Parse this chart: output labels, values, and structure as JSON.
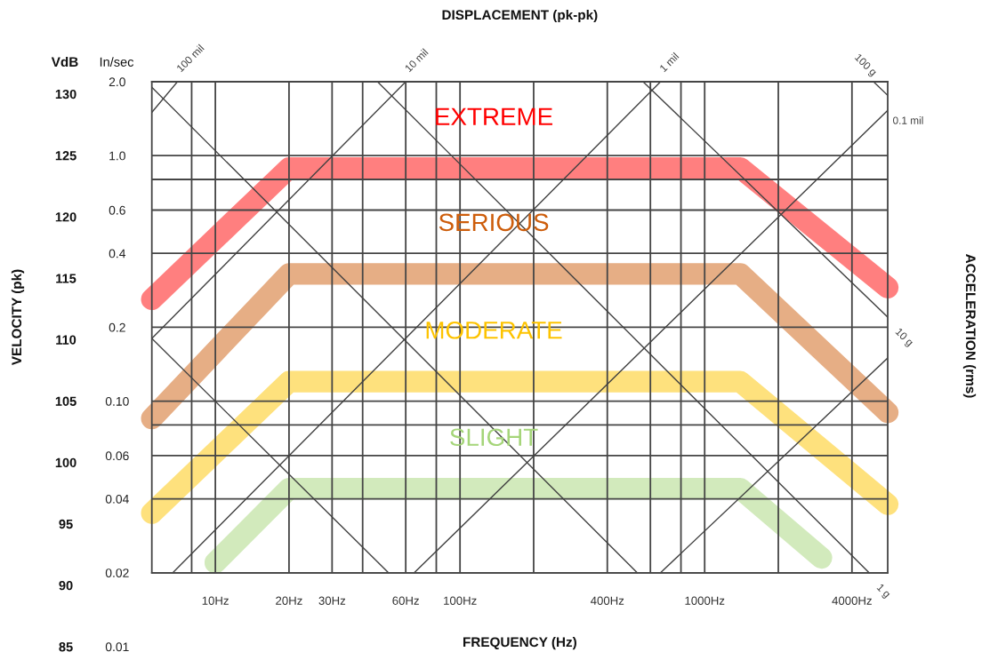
{
  "chart_data": {
    "type": "line",
    "title": "DISPLACEMENT (pk-pk)",
    "xlabel": "FREQUENCY (Hz)",
    "ylabel": "In/sec",
    "y2label": "VdB",
    "annotations": [
      "VELOCITY (pk)",
      "ACCELERATION (rms)",
      "EXTREME",
      "SERIOUS",
      "MODERATE",
      "SLIGHT"
    ],
    "log": "xy",
    "grid": true,
    "xlim": [
      5.5,
      5600
    ],
    "xticks": [
      {
        "value": 8,
        "label": null
      },
      {
        "value": 10,
        "label": "10Hz"
      },
      {
        "value": 20,
        "label": "20Hz"
      },
      {
        "value": 30,
        "label": "30Hz"
      },
      {
        "value": 40,
        "label": null
      },
      {
        "value": 60,
        "label": "60Hz"
      },
      {
        "value": 80,
        "label": null
      },
      {
        "value": 100,
        "label": "100Hz"
      },
      {
        "value": 200,
        "label": null
      },
      {
        "value": 400,
        "label": "400Hz"
      },
      {
        "value": 600,
        "label": null
      },
      {
        "value": 800,
        "label": null
      },
      {
        "value": 1000,
        "label": "1000Hz"
      },
      {
        "value": 2000,
        "label": null
      },
      {
        "value": 4000,
        "label": "4000Hz"
      }
    ],
    "ylim": [
      0.01,
      2.0
    ],
    "yticks": [
      {
        "value": 2.0,
        "label": "2.0"
      },
      {
        "value": 1.0,
        "label": "1.0"
      },
      {
        "value": 0.8,
        "label": null
      },
      0.6,
      0.4,
      0.2,
      {
        "value": 0.1,
        "label": "0.10"
      },
      {
        "value": 0.08,
        "label": null
      },
      0.06,
      0.04,
      0.02,
      0.01
    ],
    "y2lim": [
      85,
      131
    ],
    "y2ticks": [
      130,
      125,
      120,
      115,
      110,
      105,
      100,
      95,
      90,
      85
    ],
    "series": [
      {
        "color": "#ff7f7f",
        "x": [
          5.5,
          20,
          1400,
          5600
        ],
        "values": [
          0.26,
          0.89,
          0.89,
          0.29
        ]
      },
      {
        "color": "#e6ae85",
        "x": [
          5.5,
          20,
          1400,
          5600
        ],
        "values": [
          0.085,
          0.33,
          0.33,
          0.09
        ]
      },
      {
        "color": "#fee17d",
        "x": [
          5.5,
          20,
          1400,
          5600
        ],
        "values": [
          0.035,
          0.12,
          0.12,
          0.038
        ]
      },
      {
        "color": "#d2eabc",
        "x": [
          10,
          20,
          1400,
          3000
        ],
        "values": [
          0.022,
          0.044,
          0.044,
          0.023
        ]
      },
      {
        "name": "100 mil",
        "color": "#404040",
        "x": [
          5.5,
          7.0
        ],
        "values": [
          1.5,
          2.0
        ]
      },
      {
        "name": "10 mil",
        "color": "#404040",
        "x": [
          5.5,
          60
        ],
        "values": [
          0.18,
          2.0
        ]
      },
      {
        "name": "1 mil",
        "color": "#404040",
        "x": [
          6.7,
          660
        ],
        "values": [
          0.02,
          2.0
        ]
      },
      {
        "name": "0.1 mil",
        "color": "#404040",
        "x": [
          65,
          5600
        ],
        "values": [
          0.02,
          1.53
        ]
      },
      {
        "color": "#404040",
        "x": [
          660,
          5600
        ],
        "values": [
          0.02,
          0.15
        ]
      },
      {
        "color": "#404040",
        "x": [
          5.5,
          530
        ],
        "values": [
          1.9,
          0.02
        ]
      },
      {
        "color": "#404040",
        "x": [
          5.5,
          51
        ],
        "values": [
          0.18,
          0.02
        ]
      },
      {
        "name": "1 g",
        "color": "#404040",
        "x": [
          46,
          4700
        ],
        "values": [
          2.0,
          0.02
        ]
      },
      {
        "name": "10 g",
        "color": "#404040",
        "x": [
          560,
          5600
        ],
        "values": [
          2.0,
          0.22
        ]
      },
      {
        "name": "100 g",
        "color": "#404040",
        "x": [
          4900,
          5600
        ],
        "values": [
          2.0,
          1.76
        ]
      }
    ]
  }
}
